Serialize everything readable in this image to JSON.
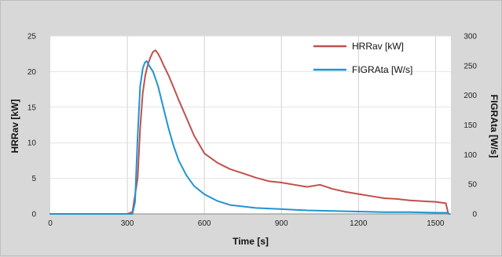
{
  "chart_data": {
    "type": "line",
    "title": "",
    "xlabel": "Time [s]",
    "ylabel_left": "HRRav [kW]",
    "ylabel_right": "FIGRAta [W/s]",
    "xlim": [
      0,
      1560
    ],
    "ylim_left": [
      0,
      25
    ],
    "ylim_right": [
      0,
      300
    ],
    "x_ticks": [
      0,
      300,
      600,
      900,
      1200,
      1500
    ],
    "y_ticks_left": [
      0,
      5,
      10,
      15,
      20,
      25
    ],
    "y_ticks_right": [
      0,
      50,
      100,
      150,
      200,
      250,
      300
    ],
    "grid": true,
    "legend_position": "top-right",
    "series": [
      {
        "name": "HRRav [kW]",
        "axis": "left",
        "color": "#c0504d",
        "x": [
          0,
          300,
          320,
          340,
          350,
          360,
          370,
          380,
          390,
          400,
          410,
          420,
          430,
          440,
          460,
          480,
          500,
          530,
          560,
          600,
          650,
          700,
          750,
          800,
          850,
          900,
          950,
          1000,
          1050,
          1100,
          1150,
          1200,
          1250,
          1300,
          1350,
          1400,
          1450,
          1500,
          1540,
          1550
        ],
        "y": [
          0,
          0,
          0.3,
          5,
          12,
          17,
          19.5,
          21,
          22,
          22.8,
          23,
          22.5,
          21.8,
          21,
          19.5,
          17.8,
          16,
          13.5,
          11,
          8.5,
          7.2,
          6.3,
          5.7,
          5.1,
          4.6,
          4.4,
          4.1,
          3.8,
          4.1,
          3.5,
          3.1,
          2.8,
          2.5,
          2.2,
          2.1,
          1.9,
          1.8,
          1.7,
          1.5,
          0
        ]
      },
      {
        "name": "FIGRAta [W/s]",
        "axis": "right",
        "color": "#1f95cf",
        "x": [
          0,
          320,
          330,
          340,
          350,
          360,
          368,
          375,
          385,
          400,
          420,
          440,
          460,
          480,
          500,
          530,
          560,
          600,
          650,
          700,
          800,
          900,
          1000,
          1100,
          1200,
          1300,
          1400,
          1500,
          1545,
          1555
        ],
        "y": [
          0,
          0,
          20,
          130,
          215,
          245,
          255,
          258,
          250,
          240,
          215,
          180,
          145,
          115,
          90,
          65,
          47,
          33,
          22,
          15,
          10,
          8,
          6,
          5,
          4,
          3,
          3,
          2,
          2,
          0
        ]
      }
    ]
  }
}
